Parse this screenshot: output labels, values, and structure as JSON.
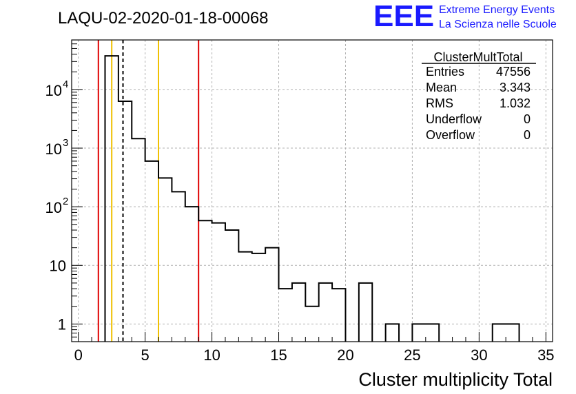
{
  "chart_data": {
    "type": "histogram",
    "title": "LAQU-02-2020-01-18-00068",
    "xlabel": "Cluster multiplicity Total",
    "ylabel": "",
    "xlim": [
      -0.5,
      35.5
    ],
    "ylim": [
      0.5,
      70000
    ],
    "yscale": "log",
    "grid": true,
    "x_ticks": [
      0,
      5,
      10,
      15,
      20,
      25,
      30,
      35
    ],
    "y_ticks": [
      {
        "value": 1,
        "label": "1"
      },
      {
        "value": 10,
        "label": "10"
      },
      {
        "value": 100,
        "label": "10",
        "exp": "2"
      },
      {
        "value": 1000,
        "label": "10",
        "exp": "3"
      },
      {
        "value": 10000,
        "label": "10",
        "exp": "4"
      }
    ],
    "bin_width": 1,
    "bins": [
      {
        "x": 2.5,
        "count": 37500
      },
      {
        "x": 3.5,
        "count": 6300
      },
      {
        "x": 4.5,
        "count": 1450
      },
      {
        "x": 5.5,
        "count": 600
      },
      {
        "x": 6.5,
        "count": 310
      },
      {
        "x": 7.5,
        "count": 180
      },
      {
        "x": 8.5,
        "count": 100
      },
      {
        "x": 9.5,
        "count": 58
      },
      {
        "x": 10.5,
        "count": 53
      },
      {
        "x": 11.5,
        "count": 40
      },
      {
        "x": 12.5,
        "count": 17
      },
      {
        "x": 13.5,
        "count": 16
      },
      {
        "x": 14.5,
        "count": 20
      },
      {
        "x": 15.5,
        "count": 4
      },
      {
        "x": 16.5,
        "count": 5
      },
      {
        "x": 17.5,
        "count": 2
      },
      {
        "x": 18.5,
        "count": 5
      },
      {
        "x": 19.5,
        "count": 4
      },
      {
        "x": 21.5,
        "count": 5
      },
      {
        "x": 23.5,
        "count": 1
      },
      {
        "x": 25.5,
        "count": 1
      },
      {
        "x": 26.5,
        "count": 1
      },
      {
        "x": 31.5,
        "count": 1
      },
      {
        "x": 32.5,
        "count": 1
      }
    ],
    "vertical_lines": [
      {
        "x": 1.5,
        "color": "#e00000",
        "style": "solid"
      },
      {
        "x": 2.5,
        "color": "#f0c000",
        "style": "solid"
      },
      {
        "x": 3.343,
        "color": "#000000",
        "style": "dashed"
      },
      {
        "x": 6.0,
        "color": "#f0c000",
        "style": "solid"
      },
      {
        "x": 9.0,
        "color": "#e00000",
        "style": "solid"
      }
    ],
    "stats_box": {
      "title": "ClusterMultTotal",
      "rows": [
        {
          "label": "Entries",
          "value": "47556"
        },
        {
          "label": "Mean",
          "value": "3.343"
        },
        {
          "label": "RMS",
          "value": "1.032"
        },
        {
          "label": "Underflow",
          "value": "0"
        },
        {
          "label": "Overflow",
          "value": "0"
        }
      ]
    }
  },
  "logo": {
    "mark": "EEE",
    "line1": "Extreme Energy Events",
    "line2": "La Scienza nelle Scuole",
    "color": "#1a1aff"
  }
}
